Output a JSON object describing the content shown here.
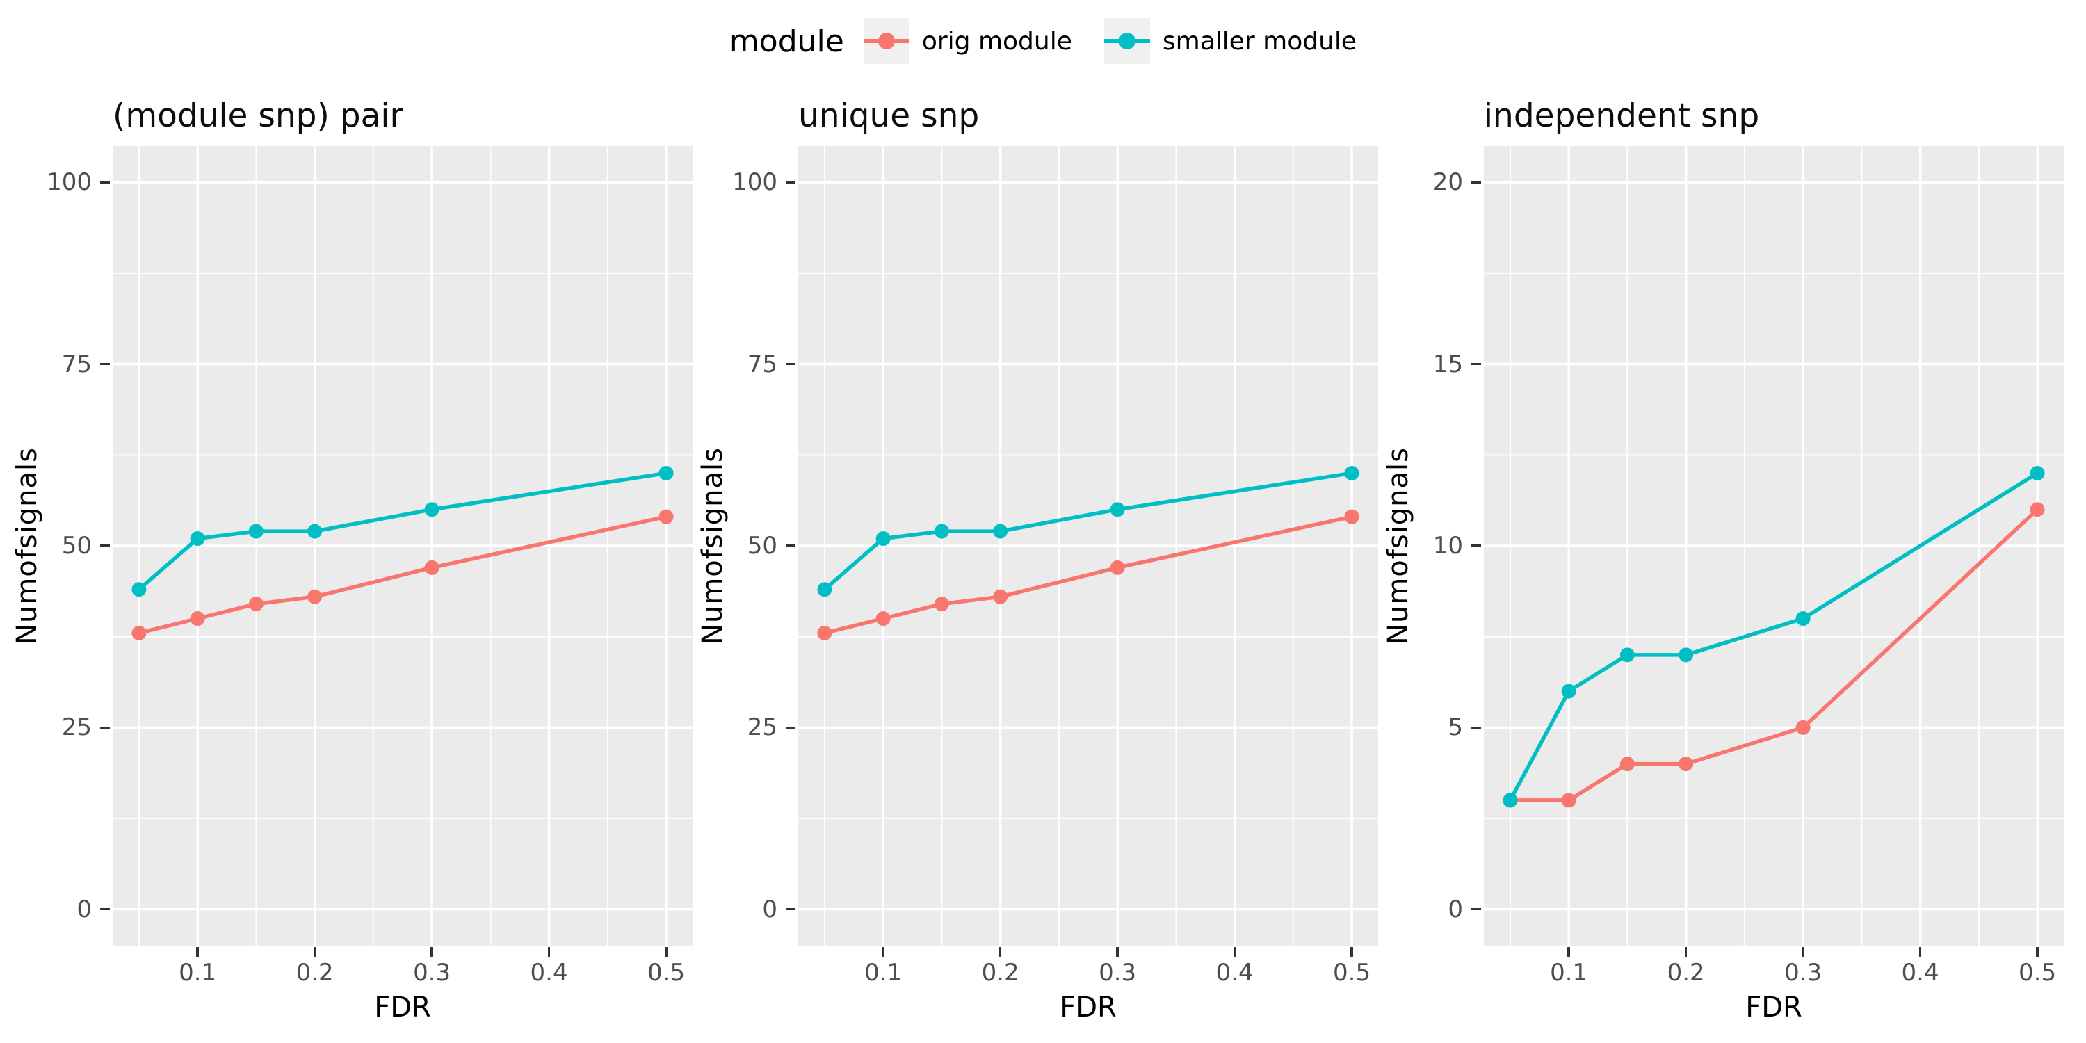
{
  "legend": {
    "title": "module",
    "items": [
      {
        "label": "orig module",
        "color": "#F8766D"
      },
      {
        "label": "smaller module",
        "color": "#00BFC4"
      }
    ]
  },
  "colors": {
    "panel_bg": "#EBEBEB",
    "grid": "#FFFFFF",
    "tick_label": "#4D4D4D",
    "tick_mark": "#333333",
    "legend_key_bg": "#F0F0F0"
  },
  "chart_data": [
    {
      "type": "line",
      "title": "(module snp) pair",
      "xlabel": "FDR",
      "ylabel": "Numofsignals",
      "x": [
        0.05,
        0.1,
        0.15,
        0.2,
        0.3,
        0.5
      ],
      "series": [
        {
          "name": "orig module",
          "color": "#F8766D",
          "values": [
            38,
            40,
            42,
            43,
            47,
            54
          ]
        },
        {
          "name": "smaller module",
          "color": "#00BFC4",
          "values": [
            44,
            51,
            52,
            52,
            55,
            60
          ]
        }
      ],
      "x_ticks": [
        0.1,
        0.2,
        0.3,
        0.4,
        0.5
      ],
      "y_ticks": [
        0,
        25,
        50,
        75,
        100
      ],
      "x_minor": [
        0.05,
        0.15,
        0.25,
        0.35,
        0.45
      ],
      "y_minor": [
        12.5,
        37.5,
        62.5,
        87.5
      ],
      "xlim": [
        0.0275,
        0.5225
      ],
      "ylim": [
        -5,
        105
      ],
      "grid": "on",
      "legend_position": "top"
    },
    {
      "type": "line",
      "title": "unique snp",
      "xlabel": "FDR",
      "ylabel": "Numofsignals",
      "x": [
        0.05,
        0.1,
        0.15,
        0.2,
        0.3,
        0.5
      ],
      "series": [
        {
          "name": "orig module",
          "color": "#F8766D",
          "values": [
            38,
            40,
            42,
            43,
            47,
            54
          ]
        },
        {
          "name": "smaller module",
          "color": "#00BFC4",
          "values": [
            44,
            51,
            52,
            52,
            55,
            60
          ]
        }
      ],
      "x_ticks": [
        0.1,
        0.2,
        0.3,
        0.4,
        0.5
      ],
      "y_ticks": [
        0,
        25,
        50,
        75,
        100
      ],
      "x_minor": [
        0.05,
        0.15,
        0.25,
        0.35,
        0.45
      ],
      "y_minor": [
        12.5,
        37.5,
        62.5,
        87.5
      ],
      "xlim": [
        0.0275,
        0.5225
      ],
      "ylim": [
        -5,
        105
      ],
      "grid": "on",
      "legend_position": "top"
    },
    {
      "type": "line",
      "title": "independent snp",
      "xlabel": "FDR",
      "ylabel": "Numofsignals",
      "x": [
        0.05,
        0.1,
        0.15,
        0.2,
        0.3,
        0.5
      ],
      "series": [
        {
          "name": "orig module",
          "color": "#F8766D",
          "values": [
            3,
            3,
            4,
            4,
            5,
            11
          ]
        },
        {
          "name": "smaller module",
          "color": "#00BFC4",
          "values": [
            3,
            6,
            7,
            7,
            8,
            12
          ]
        }
      ],
      "x_ticks": [
        0.1,
        0.2,
        0.3,
        0.4,
        0.5
      ],
      "y_ticks": [
        0,
        5,
        10,
        15,
        20
      ],
      "x_minor": [
        0.05,
        0.15,
        0.25,
        0.35,
        0.45
      ],
      "y_minor": [
        2.5,
        7.5,
        12.5,
        17.5
      ],
      "xlim": [
        0.0275,
        0.5225
      ],
      "ylim": [
        -1,
        21
      ],
      "grid": "on",
      "legend_position": "top"
    }
  ]
}
